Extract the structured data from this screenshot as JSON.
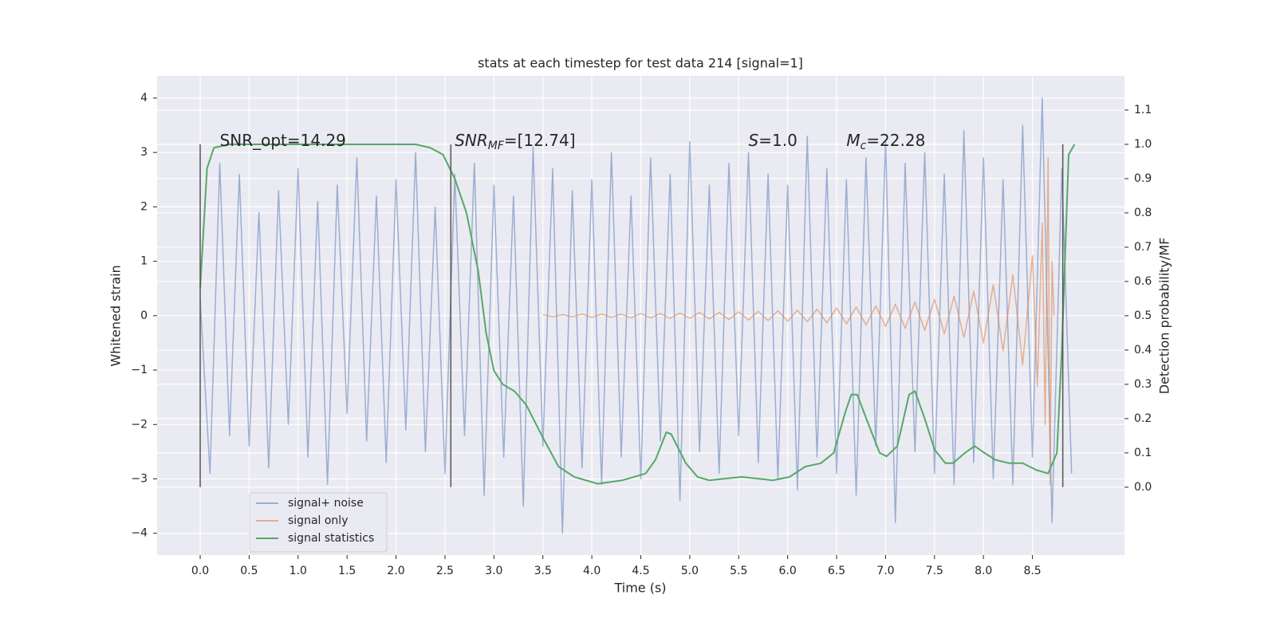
{
  "chart_data": {
    "type": "line",
    "title": "stats at each timestep for test data 214 [signal=1]",
    "xlabel": "Time (s)",
    "ylabel": "Whitened strain",
    "y2label": "Detection probability/MF",
    "xlim": [
      -0.44,
      9.44
    ],
    "ylim": [
      -4.4,
      4.41
    ],
    "y2lim": [
      -0.198,
      1.2
    ],
    "xticks": [
      {
        "value": 0,
        "label": "0.0"
      },
      0.5,
      {
        "value": 1,
        "label": "1.0"
      },
      1.5,
      {
        "value": 2,
        "label": "2.0"
      },
      2.5,
      {
        "value": 3,
        "label": "3.0"
      },
      3.5,
      {
        "value": 4,
        "label": "4.0"
      },
      4.5,
      {
        "value": 5,
        "label": "5.0"
      },
      5.5,
      {
        "value": 6,
        "label": "6.0"
      },
      6.5,
      {
        "value": 7,
        "label": "7.0"
      },
      7.5,
      {
        "value": 8,
        "label": "8.0"
      },
      8.5
    ],
    "yticks": [
      {
        "value": -4,
        "label": "−4"
      },
      {
        "value": -3,
        "label": "−3"
      },
      {
        "value": -2,
        "label": "−2"
      },
      {
        "value": -1,
        "label": "−1"
      },
      0,
      1,
      2,
      3,
      4
    ],
    "y2ticks": [
      {
        "value": 0,
        "label": "0.0"
      },
      0.1,
      0.2,
      0.3,
      0.4,
      0.5,
      0.6,
      0.7,
      0.8,
      0.9,
      {
        "value": 1,
        "label": "1.0"
      },
      1.1
    ],
    "grid": true,
    "background": "#eaeaf2",
    "legend": "lower left",
    "series": [
      {
        "name": "signal+ noise",
        "color": "#4c72b0",
        "alpha": 0.5,
        "x": [
          0.0,
          0.1,
          0.2,
          0.3,
          0.4,
          0.5,
          0.6,
          0.7,
          0.8,
          0.9,
          1.0,
          1.1,
          1.2,
          1.3,
          1.4,
          1.5,
          1.6,
          1.7,
          1.8,
          1.9,
          2.0,
          2.1,
          2.2,
          2.3,
          2.4,
          2.5,
          2.6,
          2.7,
          2.8,
          2.9,
          3.0,
          3.1,
          3.2,
          3.3,
          3.4,
          3.5,
          3.6,
          3.7,
          3.8,
          3.9,
          4.0,
          4.1,
          4.2,
          4.3,
          4.4,
          4.5,
          4.6,
          4.7,
          4.8,
          4.9,
          5.0,
          5.1,
          5.2,
          5.3,
          5.4,
          5.5,
          5.6,
          5.7,
          5.8,
          5.9,
          6.0,
          6.1,
          6.2,
          6.3,
          6.4,
          6.5,
          6.6,
          6.7,
          6.8,
          6.9,
          7.0,
          7.1,
          7.2,
          7.3,
          7.4,
          7.5,
          7.6,
          7.7,
          7.8,
          7.9,
          8.0,
          8.1,
          8.2,
          8.3,
          8.4,
          8.5,
          8.6,
          8.7,
          8.8,
          8.9
        ],
        "values": [
          0.3,
          -2.9,
          2.8,
          -2.2,
          2.6,
          -2.4,
          1.9,
          -2.8,
          2.3,
          -2.0,
          2.7,
          -2.6,
          2.1,
          -3.1,
          2.4,
          -1.8,
          2.9,
          -2.3,
          2.2,
          -2.7,
          2.5,
          -2.1,
          3.0,
          -2.5,
          2.0,
          -2.9,
          2.6,
          -2.2,
          2.8,
          -3.3,
          2.4,
          -2.6,
          2.2,
          -3.5,
          3.1,
          -2.4,
          2.7,
          -4.0,
          2.3,
          -2.8,
          2.5,
          -3.1,
          3.0,
          -2.6,
          2.2,
          -3.0,
          2.9,
          -2.3,
          2.6,
          -3.4,
          3.2,
          -2.5,
          2.4,
          -2.9,
          2.8,
          -2.2,
          3.0,
          -2.7,
          2.6,
          -3.0,
          2.4,
          -3.2,
          3.3,
          -2.6,
          2.7,
          -2.9,
          2.5,
          -3.3,
          2.9,
          -2.4,
          3.2,
          -3.8,
          2.8,
          -2.5,
          3.0,
          -2.9,
          2.6,
          -3.1,
          3.4,
          -2.7,
          2.9,
          -3.0,
          2.5,
          -3.1,
          3.5,
          -2.6,
          4.0,
          -3.8,
          2.7,
          -2.9
        ]
      },
      {
        "name": "signal only",
        "color": "#dd8452",
        "alpha": 0.6,
        "x": [
          3.5,
          3.6,
          3.7,
          3.8,
          3.9,
          4.0,
          4.1,
          4.2,
          4.3,
          4.4,
          4.5,
          4.6,
          4.7,
          4.8,
          4.9,
          5.0,
          5.1,
          5.2,
          5.3,
          5.4,
          5.5,
          5.6,
          5.7,
          5.8,
          5.9,
          6.0,
          6.1,
          6.2,
          6.3,
          6.4,
          6.5,
          6.6,
          6.7,
          6.8,
          6.9,
          7.0,
          7.1,
          7.2,
          7.3,
          7.4,
          7.5,
          7.6,
          7.7,
          7.8,
          7.9,
          8.0,
          8.1,
          8.2,
          8.3,
          8.4,
          8.5,
          8.55,
          8.6,
          8.63,
          8.66,
          8.68,
          8.7,
          8.72
        ],
        "values": [
          0.02,
          -0.02,
          0.02,
          -0.02,
          0.03,
          -0.03,
          0.03,
          -0.03,
          0.03,
          -0.04,
          0.04,
          -0.04,
          0.04,
          -0.05,
          0.05,
          -0.05,
          0.06,
          -0.06,
          0.06,
          -0.07,
          0.07,
          -0.08,
          0.08,
          -0.09,
          0.09,
          -0.1,
          0.1,
          -0.11,
          0.12,
          -0.13,
          0.14,
          -0.15,
          0.16,
          -0.17,
          0.18,
          -0.2,
          0.21,
          -0.23,
          0.25,
          -0.27,
          0.3,
          -0.33,
          0.36,
          -0.4,
          0.45,
          -0.5,
          0.57,
          -0.65,
          0.75,
          -0.9,
          1.1,
          -1.3,
          1.7,
          -2.0,
          2.9,
          -3.1,
          1.0,
          0.0
        ]
      },
      {
        "name": "signal statistics",
        "color": "#55a868",
        "alpha": 1,
        "axis": "y2",
        "x": [
          0.0,
          0.07,
          0.14,
          0.3,
          1.0,
          2.2,
          2.35,
          2.48,
          2.6,
          2.72,
          2.84,
          2.92,
          3.0,
          3.09,
          3.21,
          3.33,
          3.49,
          3.66,
          3.82,
          4.06,
          4.31,
          4.55,
          4.65,
          4.76,
          4.81,
          4.96,
          5.08,
          5.2,
          5.53,
          5.85,
          6.02,
          6.18,
          6.34,
          6.47,
          6.59,
          6.65,
          6.71,
          6.83,
          6.94,
          7.01,
          7.12,
          7.24,
          7.3,
          7.4,
          7.5,
          7.61,
          7.69,
          7.81,
          7.91,
          8.01,
          8.12,
          8.26,
          8.4,
          8.54,
          8.66,
          8.75,
          8.8,
          8.87,
          8.93
        ],
        "values": [
          0.58,
          0.93,
          0.99,
          1.0,
          1.0,
          1.0,
          0.99,
          0.97,
          0.9,
          0.8,
          0.63,
          0.45,
          0.34,
          0.3,
          0.28,
          0.24,
          0.15,
          0.06,
          0.03,
          0.01,
          0.02,
          0.04,
          0.08,
          0.16,
          0.155,
          0.07,
          0.03,
          0.02,
          0.03,
          0.02,
          0.03,
          0.06,
          0.07,
          0.1,
          0.22,
          0.27,
          0.27,
          0.18,
          0.1,
          0.09,
          0.12,
          0.27,
          0.28,
          0.2,
          0.11,
          0.07,
          0.07,
          0.1,
          0.12,
          0.1,
          0.08,
          0.07,
          0.07,
          0.05,
          0.04,
          0.1,
          0.4,
          0.97,
          1.0
        ]
      }
    ],
    "vlines": {
      "x": [
        0,
        2.56,
        8.81
      ],
      "ymin": -3.15,
      "ymax": 3.15,
      "color": "#555555"
    },
    "annotations": [
      {
        "x": 0.2,
        "y": 3.12,
        "parts": [
          {
            "text": "SNR_opt=14.29"
          }
        ]
      },
      {
        "x": 2.6,
        "y": 3.12,
        "parts": [
          {
            "text": "SNR",
            "italic": true
          },
          {
            "text": "MF",
            "italic": true,
            "sub": true
          },
          {
            "text": "=[12.74]"
          }
        ]
      },
      {
        "x": 5.6,
        "y": 3.12,
        "parts": [
          {
            "text": "S",
            "italic": true
          },
          {
            "text": "=1.0"
          }
        ]
      },
      {
        "x": 6.6,
        "y": 3.12,
        "parts": [
          {
            "text": "M",
            "italic": true
          },
          {
            "text": "c",
            "italic": true,
            "sub": true
          },
          {
            "text": "=22.28"
          }
        ]
      }
    ]
  }
}
